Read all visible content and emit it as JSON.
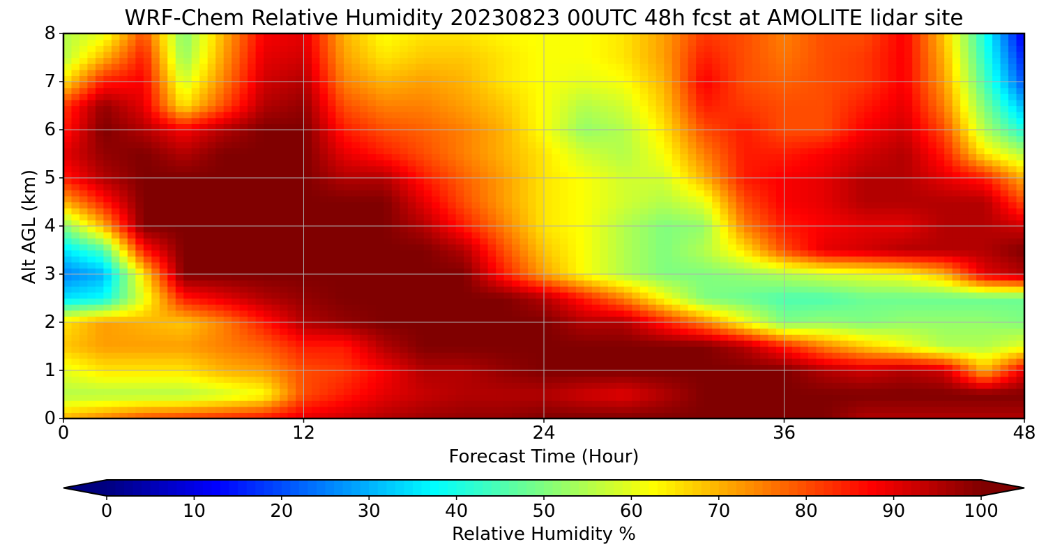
{
  "chart_data": {
    "type": "heatmap",
    "title": "WRF-Chem Relative Humidity 20230823 00UTC 48h fcst at AMOLITE lidar site",
    "xlabel": "Forecast Time (Hour)",
    "ylabel": "Alt AGL (km)",
    "colorbar_label": "Relative Humidity %",
    "xlim": [
      0,
      48
    ],
    "ylim": [
      0,
      8
    ],
    "xticks": [
      "0",
      "12",
      "24",
      "36",
      "48"
    ],
    "yticks": [
      "0",
      "1",
      "2",
      "3",
      "4",
      "5",
      "6",
      "7",
      "8"
    ],
    "colorbar_ticks": [
      "0",
      "10",
      "20",
      "30",
      "40",
      "50",
      "60",
      "70",
      "80",
      "90",
      "100"
    ],
    "colorbar_range": [
      0,
      100
    ],
    "colorbar_extend": "both",
    "colormap": "jet",
    "grid": true,
    "x": [
      0,
      2,
      4,
      6,
      8,
      10,
      12,
      14,
      16,
      18,
      20,
      22,
      24,
      26,
      28,
      30,
      32,
      34,
      36,
      38,
      40,
      42,
      44,
      46,
      48
    ],
    "y": [
      0,
      0.5,
      1,
      1.5,
      2,
      2.5,
      3,
      3.5,
      4,
      4.5,
      5,
      5.5,
      6,
      6.5,
      7,
      7.5,
      8
    ],
    "z": [
      [
        70,
        75,
        80,
        82,
        84,
        86,
        90,
        92,
        95,
        97,
        98,
        98,
        100,
        100,
        100,
        100,
        100,
        100,
        100,
        100,
        95,
        95,
        95,
        95,
        95
      ],
      [
        55,
        55,
        55,
        55,
        58,
        62,
        80,
        85,
        90,
        93,
        95,
        95,
        95,
        92,
        90,
        95,
        100,
        100,
        100,
        100,
        100,
        100,
        100,
        100,
        100
      ],
      [
        60,
        65,
        65,
        65,
        70,
        72,
        80,
        82,
        88,
        95,
        95,
        98,
        100,
        100,
        100,
        100,
        100,
        100,
        100,
        95,
        92,
        95,
        92,
        70,
        90
      ],
      [
        68,
        72,
        72,
        72,
        75,
        78,
        85,
        85,
        95,
        100,
        100,
        100,
        100,
        100,
        100,
        100,
        100,
        95,
        85,
        75,
        68,
        62,
        55,
        55,
        60
      ],
      [
        65,
        72,
        70,
        68,
        75,
        85,
        95,
        98,
        100,
        100,
        100,
        100,
        100,
        95,
        95,
        85,
        75,
        62,
        50,
        52,
        50,
        52,
        52,
        52,
        50
      ],
      [
        35,
        38,
        60,
        85,
        90,
        95,
        98,
        100,
        100,
        100,
        100,
        100,
        95,
        85,
        75,
        62,
        50,
        48,
        45,
        45,
        48,
        48,
        48,
        48,
        48
      ],
      [
        25,
        30,
        65,
        100,
        100,
        100,
        100,
        100,
        100,
        100,
        100,
        85,
        72,
        62,
        55,
        50,
        50,
        52,
        55,
        58,
        60,
        62,
        70,
        90,
        95
      ],
      [
        35,
        45,
        85,
        100,
        100,
        100,
        100,
        100,
        100,
        100,
        95,
        80,
        68,
        62,
        55,
        50,
        55,
        65,
        80,
        90,
        92,
        95,
        95,
        95,
        100
      ],
      [
        50,
        70,
        100,
        100,
        100,
        100,
        100,
        100,
        100,
        95,
        85,
        75,
        65,
        62,
        55,
        50,
        52,
        75,
        85,
        88,
        90,
        90,
        95,
        95,
        92
      ],
      [
        70,
        85,
        100,
        100,
        100,
        100,
        100,
        100,
        100,
        90,
        80,
        72,
        65,
        62,
        58,
        55,
        60,
        80,
        88,
        90,
        95,
        95,
        95,
        95,
        80
      ],
      [
        85,
        95,
        100,
        100,
        100,
        100,
        100,
        95,
        95,
        85,
        78,
        72,
        65,
        62,
        58,
        58,
        70,
        85,
        88,
        90,
        95,
        95,
        90,
        85,
        70
      ],
      [
        90,
        98,
        100,
        95,
        100,
        100,
        100,
        90,
        85,
        80,
        75,
        70,
        65,
        58,
        55,
        62,
        75,
        85,
        85,
        88,
        92,
        95,
        85,
        65,
        55
      ],
      [
        85,
        100,
        95,
        88,
        95,
        100,
        100,
        85,
        80,
        78,
        75,
        70,
        62,
        52,
        55,
        65,
        80,
        85,
        80,
        80,
        88,
        92,
        80,
        55,
        40
      ],
      [
        82,
        98,
        90,
        65,
        80,
        95,
        98,
        80,
        75,
        75,
        72,
        68,
        62,
        55,
        58,
        68,
        85,
        82,
        80,
        80,
        85,
        90,
        75,
        50,
        30
      ],
      [
        65,
        85,
        88,
        58,
        75,
        92,
        95,
        75,
        70,
        72,
        70,
        65,
        62,
        60,
        62,
        70,
        88,
        80,
        78,
        80,
        82,
        88,
        72,
        45,
        20
      ],
      [
        55,
        70,
        85,
        52,
        72,
        90,
        92,
        72,
        65,
        68,
        68,
        65,
        62,
        62,
        65,
        72,
        85,
        80,
        76,
        80,
        82,
        88,
        70,
        42,
        15
      ],
      [
        55,
        60,
        80,
        50,
        70,
        88,
        90,
        70,
        62,
        65,
        65,
        63,
        62,
        62,
        65,
        72,
        82,
        80,
        75,
        80,
        80,
        88,
        68,
        40,
        10
      ]
    ]
  }
}
